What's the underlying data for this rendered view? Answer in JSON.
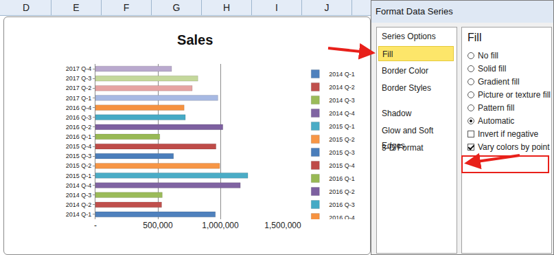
{
  "spreadsheet": {
    "columns": [
      "D",
      "E",
      "F",
      "G",
      "H",
      "I",
      "J"
    ]
  },
  "chart_data": {
    "type": "bar",
    "title": "Sales",
    "orientation": "horizontal",
    "categories": [
      "2014 Q-1",
      "2014 Q-2",
      "2014 Q-3",
      "2014 Q-4",
      "2015 Q-1",
      "2015 Q-2",
      "2015 Q-3",
      "2015 Q-4",
      "2016 Q-1",
      "2016 Q-2",
      "2016 Q-3",
      "2016 Q-4",
      "2017 Q-1",
      "2017 Q-2",
      "2017 Q-3",
      "2017 Q-4"
    ],
    "values": [
      960000,
      530000,
      535000,
      1160000,
      1220000,
      995000,
      625000,
      965000,
      515000,
      1020000,
      720000,
      710000,
      980000,
      775000,
      820000,
      610000
    ],
    "colors": [
      "#4f81bd",
      "#c0504d",
      "#9bbb59",
      "#8064a2",
      "#4bacc6",
      "#f79646",
      "#4a7ebb",
      "#be4b48",
      "#98b954",
      "#7d60a0",
      "#46aac5",
      "#f69240",
      "#a7b9e3",
      "#e6a3a2",
      "#c4d89b",
      "#b9a9ce"
    ],
    "xlim": [
      0,
      1500000
    ],
    "xticks": [
      {
        "value": 0,
        "label": "-"
      },
      {
        "value": 500000,
        "label": "500,000"
      },
      {
        "value": 1000000,
        "label": "1,000,000"
      },
      {
        "value": 1500000,
        "label": "1,500,000"
      }
    ],
    "grid": true,
    "legend": "right"
  },
  "dialog": {
    "title": "Format Data Series",
    "menu": [
      {
        "label": "Series Options",
        "selected": false
      },
      {
        "label": "Fill",
        "selected": true
      },
      {
        "label": "Border Color",
        "selected": false
      },
      {
        "label": "Border Styles",
        "selected": false
      },
      {
        "label": "Shadow",
        "selected": false
      },
      {
        "label": "Glow and Soft Edges",
        "selected": false
      },
      {
        "label": "3-D Format",
        "selected": false
      }
    ],
    "section": "Fill",
    "options": [
      {
        "label": "No fill",
        "kind": "radio",
        "checked": false
      },
      {
        "label": "Solid fill",
        "kind": "radio",
        "checked": false
      },
      {
        "label": "Gradient fill",
        "kind": "radio",
        "checked": false
      },
      {
        "label": "Picture or texture fill",
        "kind": "radio",
        "checked": false
      },
      {
        "label": "Pattern fill",
        "kind": "radio",
        "checked": false
      },
      {
        "label": "Automatic",
        "kind": "radio",
        "checked": true
      },
      {
        "label": "Invert if negative",
        "kind": "checkbox",
        "checked": false
      },
      {
        "label": "Vary colors by point",
        "kind": "checkbox",
        "checked": true
      }
    ]
  }
}
